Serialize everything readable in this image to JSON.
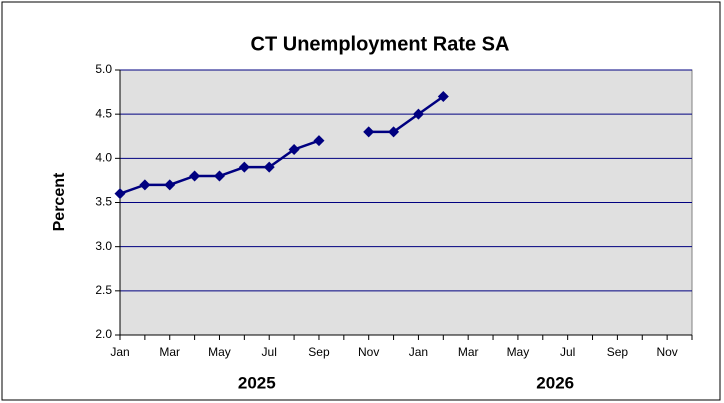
{
  "chart_data": {
    "type": "line",
    "title": "CT Unemployment Rate SA",
    "y_label": "Percent",
    "categories": [
      "Jan",
      null,
      "Mar",
      null,
      "May",
      null,
      "Jul",
      null,
      "Sep",
      null,
      "Nov",
      null,
      "Jan",
      null,
      "Mar",
      null,
      "May",
      null,
      "Jul",
      null,
      "Sep",
      null,
      "Nov",
      null
    ],
    "groups": [
      {
        "label": "2025",
        "span": 12
      },
      {
        "label": "2026",
        "span": 12
      }
    ],
    "series": [
      {
        "name": "CT Unemployment Rate SA",
        "color": "#000080",
        "values": [
          3.6,
          3.7,
          3.7,
          3.8,
          3.8,
          3.9,
          3.9,
          4.1,
          4.2,
          null,
          4.3,
          4.3,
          4.5,
          4.7,
          null,
          null,
          null,
          null,
          null,
          null,
          null,
          null,
          null,
          null
        ]
      }
    ],
    "ylim": [
      2,
      5
    ],
    "yticks": [
      {
        "value": 2,
        "label": "2.0"
      },
      {
        "value": 2.5,
        "label": "2.5"
      },
      {
        "value": 3,
        "label": "3.0"
      },
      {
        "value": 3.5,
        "label": "3.5"
      },
      {
        "value": 4,
        "label": "4.0"
      },
      {
        "value": 4.5,
        "label": "4.5"
      },
      {
        "value": 5,
        "label": "5.0"
      }
    ],
    "grid": true,
    "grid_color": "#000080",
    "plot_background": "#e0e0e0"
  }
}
